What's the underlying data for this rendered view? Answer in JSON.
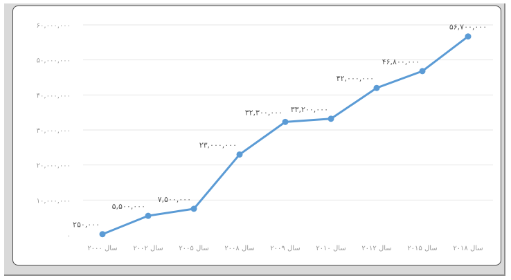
{
  "chart_data": {
    "type": "line",
    "categories": [
      "سال ۲۰۰۰",
      "سال ۲۰۰۲",
      "سال ۲۰۰۵",
      "سال ۲۰۰۸",
      "سال ۲۰۰۹",
      "سال ۲۰۱۰",
      "سال ۲۰۱۲",
      "سال ۲۰۱۵",
      "سال ۲۰۱۸"
    ],
    "values": [
      250000,
      5500000,
      7500000,
      23000000,
      32300000,
      33200000,
      42000000,
      46800000,
      56700000
    ],
    "data_labels": [
      "۲۵۰,۰۰۰",
      "۵,۵۰۰,۰۰۰",
      "۷,۵۰۰,۰۰۰",
      "۲۳,۰۰۰,۰۰۰",
      "۳۲,۳۰۰,۰۰۰",
      "۳۳,۲۰۰,۰۰۰",
      "۴۲,۰۰۰,۰۰۰",
      "۴۶,۸۰۰,۰۰۰",
      "۵۶,۷۰۰,۰۰۰"
    ],
    "yticks": [
      0,
      10000000,
      20000000,
      30000000,
      40000000,
      50000000,
      60000000
    ],
    "ytick_labels": [
      "۰",
      "۱۰,۰۰۰,۰۰۰",
      "۲۰,۰۰۰,۰۰۰",
      "۳۰,۰۰۰,۰۰۰",
      "۴۰,۰۰۰,۰۰۰",
      "۵۰,۰۰۰,۰۰۰",
      "۶۰,۰۰۰,۰۰۰"
    ],
    "ylim": [
      0,
      60000000
    ],
    "grid": true,
    "line_color": "#5b9bd5",
    "grid_color": "#e6e6e6",
    "title": "",
    "xlabel": "",
    "ylabel": ""
  }
}
